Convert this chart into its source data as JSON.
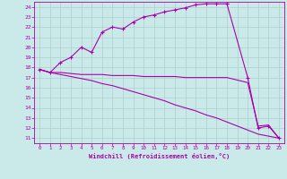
{
  "xlabel": "Windchill (Refroidissement éolien,°C)",
  "bg_color": "#caeaea",
  "grid_color": "#afd0d0",
  "line_color": "#aa00aa",
  "xlim": [
    -0.5,
    23.5
  ],
  "ylim": [
    10.5,
    24.5
  ],
  "xticks": [
    0,
    1,
    2,
    3,
    4,
    5,
    6,
    7,
    8,
    9,
    10,
    11,
    12,
    13,
    14,
    15,
    16,
    17,
    18,
    19,
    20,
    21,
    22,
    23
  ],
  "yticks": [
    11,
    12,
    13,
    14,
    15,
    16,
    17,
    18,
    19,
    20,
    21,
    22,
    23,
    24
  ],
  "line1_x": [
    0,
    1,
    2,
    3,
    4,
    5,
    6,
    7,
    8,
    9,
    10,
    11,
    12,
    13,
    14,
    15,
    16,
    17,
    18,
    18,
    20,
    21,
    22,
    23
  ],
  "line1_y": [
    17.8,
    17.5,
    18.5,
    19.0,
    20.0,
    19.5,
    21.5,
    22.0,
    21.8,
    22.5,
    23.0,
    23.2,
    23.5,
    23.7,
    23.9,
    24.2,
    24.3,
    24.3,
    24.3,
    24.3,
    17.0,
    12.0,
    12.2,
    11.0
  ],
  "line2_x": [
    0,
    1,
    2,
    3,
    4,
    5,
    6,
    7,
    8,
    9,
    10,
    11,
    12,
    13,
    14,
    15,
    16,
    17,
    18,
    20,
    21,
    22,
    23
  ],
  "line2_y": [
    17.8,
    17.5,
    17.5,
    17.4,
    17.3,
    17.3,
    17.3,
    17.2,
    17.2,
    17.2,
    17.1,
    17.1,
    17.1,
    17.1,
    17.0,
    17.0,
    17.0,
    17.0,
    17.0,
    16.5,
    12.2,
    12.3,
    11.0
  ],
  "line3_x": [
    0,
    1,
    2,
    3,
    4,
    5,
    6,
    7,
    8,
    9,
    10,
    11,
    12,
    13,
    14,
    15,
    16,
    17,
    18,
    20,
    21,
    22,
    23
  ],
  "line3_y": [
    17.8,
    17.5,
    17.3,
    17.1,
    16.9,
    16.7,
    16.4,
    16.2,
    15.9,
    15.6,
    15.3,
    15.0,
    14.7,
    14.3,
    14.0,
    13.7,
    13.3,
    13.0,
    12.6,
    11.8,
    11.4,
    11.2,
    11.0
  ]
}
